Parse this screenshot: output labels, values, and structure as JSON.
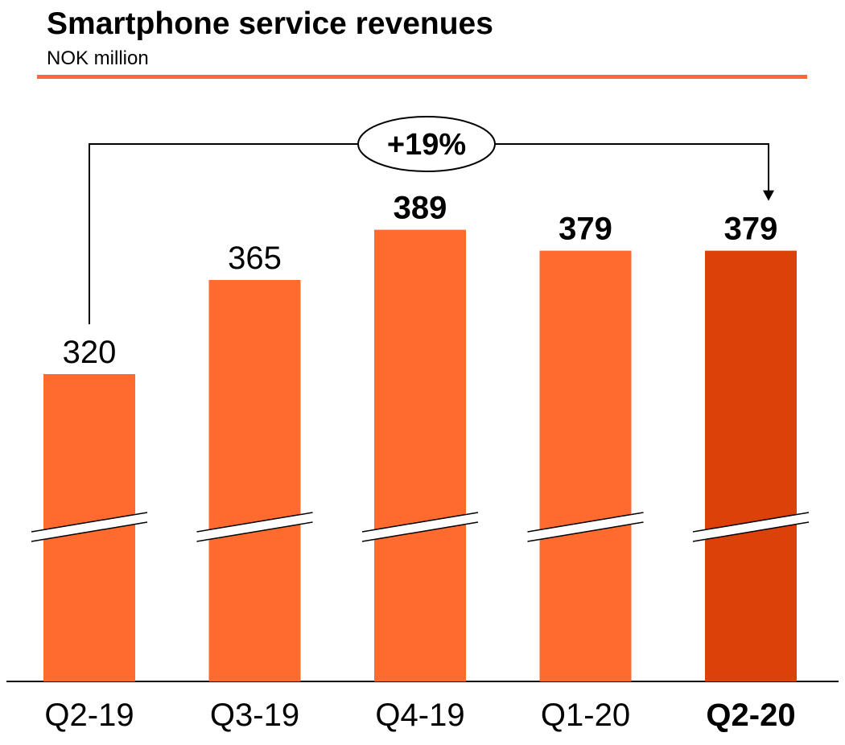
{
  "header": {
    "title": "Smartphone service revenues",
    "subtitle": "NOK million"
  },
  "colors": {
    "bar": "#FF6A2E",
    "bar_highlight": "#DB4108",
    "rule": "#FF6A2E",
    "text": "#000000"
  },
  "chart_data": {
    "type": "bar",
    "title": "Smartphone service revenues",
    "subtitle": "NOK million",
    "categories": [
      "Q2-19",
      "Q3-19",
      "Q4-19",
      "Q1-20",
      "Q2-20"
    ],
    "values": [
      320,
      365,
      389,
      379,
      379
    ],
    "value_labels": [
      "320",
      "365",
      "389",
      "379",
      "379"
    ],
    "bold_value_labels": [
      false,
      false,
      true,
      true,
      true
    ],
    "bold_categories": [
      false,
      false,
      false,
      false,
      true
    ],
    "highlight_index": 4,
    "axis_break": true,
    "grid": false,
    "legend": "none",
    "annotation": {
      "text": "+19%",
      "from_category": "Q2-19",
      "to_category": "Q2-20"
    }
  }
}
